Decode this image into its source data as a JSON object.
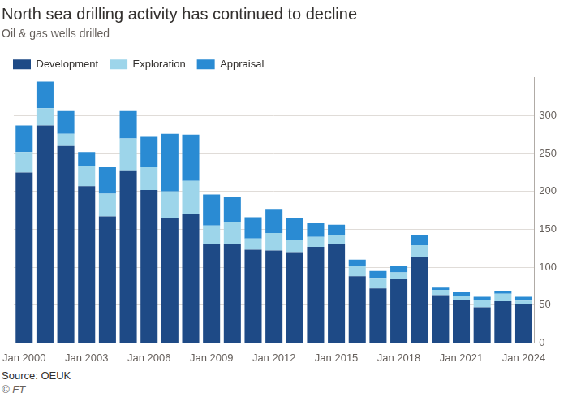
{
  "chart_data": {
    "type": "bar",
    "title": "North sea drilling activity has continued to decline",
    "subtitle": "Oil & gas wells drilled",
    "source": "Source: OEUK",
    "credit": "© FT",
    "categories": [
      "Jan 2000",
      null,
      null,
      "Jan 2003",
      null,
      null,
      "Jan 2006",
      null,
      null,
      "Jan 2009",
      null,
      null,
      "Jan 2012",
      null,
      null,
      "Jan 2015",
      null,
      null,
      "Jan 2018",
      null,
      null,
      "Jan 2021",
      null,
      null,
      "Jan 2024"
    ],
    "series": [
      {
        "name": "Development",
        "color": "#1e4a86",
        "values": [
          225,
          287,
          260,
          207,
          167,
          228,
          202,
          165,
          170,
          131,
          130,
          123,
          122,
          120,
          127,
          130,
          88,
          72,
          85,
          113,
          63,
          57,
          47,
          55,
          51
        ]
      },
      {
        "name": "Exploration",
        "color": "#9dd5ea",
        "values": [
          27,
          23,
          16,
          27,
          30,
          42,
          30,
          35,
          44,
          24,
          29,
          15,
          23,
          16,
          13,
          13,
          14,
          14,
          8,
          16,
          7,
          5,
          10,
          10,
          5
        ]
      },
      {
        "name": "Appraisal",
        "color": "#2a8bd3",
        "values": [
          35,
          35,
          30,
          18,
          35,
          36,
          40,
          76,
          61,
          41,
          34,
          28,
          31,
          29,
          18,
          13,
          8,
          9,
          9,
          13,
          3,
          5,
          4,
          4,
          5
        ]
      }
    ],
    "stacked": true,
    "ylim": [
      0,
      350
    ],
    "yticks": [
      0,
      50,
      100,
      150,
      200,
      250,
      300
    ],
    "grid": true,
    "legend": "top-left"
  }
}
